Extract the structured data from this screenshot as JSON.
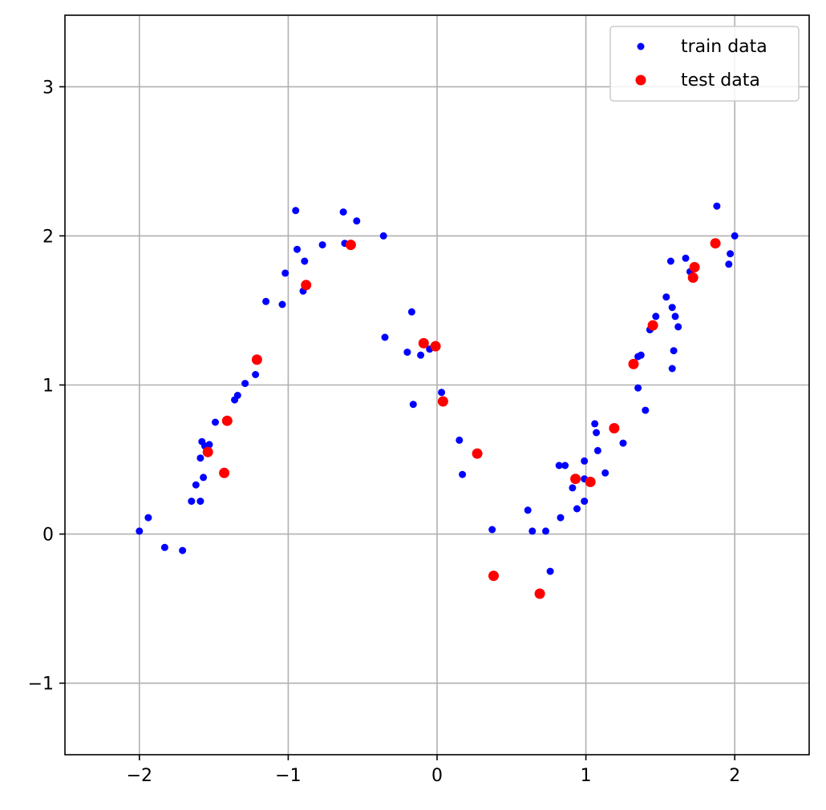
{
  "chart_data": {
    "type": "scatter",
    "title": "",
    "xlabel": "",
    "ylabel": "",
    "xlim": [
      -2.5,
      2.5
    ],
    "ylim": [
      -1.48,
      3.48
    ],
    "x_ticks": [
      -2,
      -1,
      0,
      1,
      2
    ],
    "y_ticks": [
      -1,
      0,
      1,
      2,
      3
    ],
    "x_tick_labels": [
      "−2",
      "−1",
      "0",
      "1",
      "2"
    ],
    "y_tick_labels": [
      "−1",
      "0",
      "1",
      "2",
      "3"
    ],
    "grid": true,
    "legend_position": "top-right",
    "series": [
      {
        "name": "train data",
        "color": "#0000ff",
        "marker": "small-circle",
        "points": [
          [
            -2.0,
            0.02
          ],
          [
            -1.94,
            0.11
          ],
          [
            -1.83,
            -0.09
          ],
          [
            -1.71,
            -0.11
          ],
          [
            -1.65,
            0.22
          ],
          [
            -1.62,
            0.33
          ],
          [
            -1.59,
            0.22
          ],
          [
            -1.59,
            0.51
          ],
          [
            -1.58,
            0.62
          ],
          [
            -1.57,
            0.38
          ],
          [
            -1.56,
            0.59
          ],
          [
            -1.53,
            0.6
          ],
          [
            -1.49,
            0.75
          ],
          [
            -1.36,
            0.9
          ],
          [
            -1.34,
            0.93
          ],
          [
            -1.29,
            1.01
          ],
          [
            -1.22,
            1.07
          ],
          [
            -1.15,
            1.56
          ],
          [
            -1.04,
            1.54
          ],
          [
            -1.02,
            1.75
          ],
          [
            -0.95,
            2.17
          ],
          [
            -0.94,
            1.91
          ],
          [
            -0.9,
            1.63
          ],
          [
            -0.89,
            1.83
          ],
          [
            -0.77,
            1.94
          ],
          [
            -0.63,
            2.16
          ],
          [
            -0.62,
            1.95
          ],
          [
            -0.54,
            2.1
          ],
          [
            -0.36,
            2.0
          ],
          [
            -0.35,
            1.32
          ],
          [
            -0.2,
            1.22
          ],
          [
            -0.17,
            1.49
          ],
          [
            -0.16,
            0.87
          ],
          [
            -0.11,
            1.2
          ],
          [
            -0.05,
            1.24
          ],
          [
            0.03,
            0.95
          ],
          [
            0.15,
            0.63
          ],
          [
            0.17,
            0.4
          ],
          [
            0.37,
            0.03
          ],
          [
            0.61,
            0.16
          ],
          [
            0.64,
            0.02
          ],
          [
            0.73,
            0.02
          ],
          [
            0.76,
            -0.25
          ],
          [
            0.82,
            0.46
          ],
          [
            0.83,
            0.11
          ],
          [
            0.86,
            0.46
          ],
          [
            0.91,
            0.31
          ],
          [
            0.94,
            0.17
          ],
          [
            0.99,
            0.49
          ],
          [
            0.99,
            0.37
          ],
          [
            0.99,
            0.22
          ],
          [
            1.06,
            0.74
          ],
          [
            1.07,
            0.68
          ],
          [
            1.08,
            0.56
          ],
          [
            1.13,
            0.41
          ],
          [
            1.25,
            0.61
          ],
          [
            1.35,
            0.98
          ],
          [
            1.35,
            1.19
          ],
          [
            1.37,
            1.2
          ],
          [
            1.4,
            0.83
          ],
          [
            1.43,
            1.37
          ],
          [
            1.47,
            1.46
          ],
          [
            1.54,
            1.59
          ],
          [
            1.57,
            1.83
          ],
          [
            1.58,
            1.52
          ],
          [
            1.58,
            1.11
          ],
          [
            1.59,
            1.23
          ],
          [
            1.6,
            1.46
          ],
          [
            1.62,
            1.39
          ],
          [
            1.67,
            1.85
          ],
          [
            1.7,
            1.76
          ],
          [
            1.87,
            1.94
          ],
          [
            1.88,
            2.2
          ],
          [
            1.96,
            1.81
          ],
          [
            1.97,
            1.88
          ],
          [
            2.0,
            2.0
          ]
        ]
      },
      {
        "name": "test data",
        "color": "#ff0000",
        "marker": "circle",
        "points": [
          [
            -1.54,
            0.55
          ],
          [
            -1.43,
            0.41
          ],
          [
            -1.41,
            0.76
          ],
          [
            -1.21,
            1.17
          ],
          [
            -0.88,
            1.67
          ],
          [
            -0.58,
            1.94
          ],
          [
            -0.09,
            1.28
          ],
          [
            -0.01,
            1.26
          ],
          [
            0.04,
            0.89
          ],
          [
            0.27,
            0.54
          ],
          [
            0.38,
            -0.28
          ],
          [
            0.69,
            -0.4
          ],
          [
            0.93,
            0.37
          ],
          [
            1.03,
            0.35
          ],
          [
            1.19,
            0.71
          ],
          [
            1.32,
            1.14
          ],
          [
            1.45,
            1.4
          ],
          [
            1.72,
            1.72
          ],
          [
            1.73,
            1.79
          ],
          [
            1.87,
            1.95
          ]
        ]
      }
    ]
  }
}
